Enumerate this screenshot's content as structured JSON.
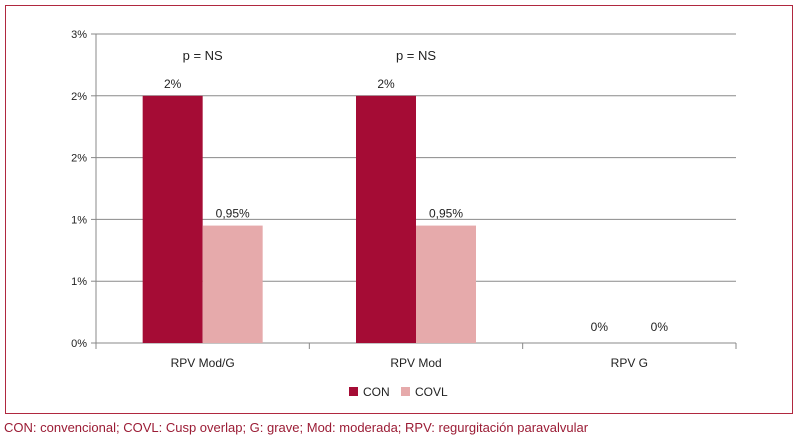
{
  "chart_data": {
    "type": "bar",
    "categories": [
      "RPV Mod/G",
      "RPV Mod",
      "RPV  G"
    ],
    "series": [
      {
        "name": "CON",
        "values": [
          2.0,
          2.0,
          0
        ],
        "labels": [
          "2%",
          "2%",
          "0%"
        ]
      },
      {
        "name": "COVL",
        "values": [
          0.95,
          0.95,
          0
        ],
        "labels": [
          "0,95%",
          "0,95%",
          "0%"
        ]
      }
    ],
    "significance": [
      "p = NS",
      "p = NS",
      ""
    ],
    "y_ticks": [
      {
        "value": 0,
        "label": "0%"
      },
      {
        "value": 0.5,
        "label": "1%"
      },
      {
        "value": 1.0,
        "label": "1%"
      },
      {
        "value": 1.5,
        "label": "2%"
      },
      {
        "value": 2.0,
        "label": "2%"
      },
      {
        "value": 2.5,
        "label": "3%"
      }
    ],
    "ylim": [
      0,
      2.5
    ],
    "grid": true,
    "legend_position": "bottom",
    "colors": {
      "CON": "#a50c35",
      "COVL": "#e6aaab",
      "frame": "#b0283f"
    },
    "title": "",
    "xlabel": "",
    "ylabel": ""
  },
  "caption": "CON: convencional; COVL: Cusp overlap; G: grave; Mod: moderada; RPV: regurgitación paravalvular"
}
